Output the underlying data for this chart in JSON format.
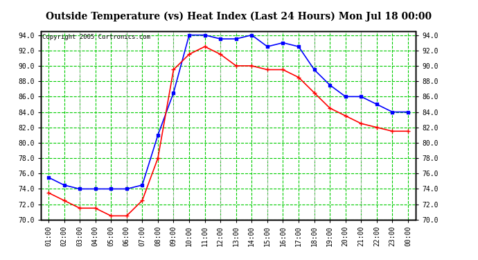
{
  "title": "Outside Temperature (vs) Heat Index (Last 24 Hours) Mon Jul 18 00:00",
  "copyright": "Copyright 2005 Curtronics.com",
  "x_labels": [
    "01:00",
    "02:00",
    "03:00",
    "04:00",
    "05:00",
    "06:00",
    "07:00",
    "08:00",
    "09:00",
    "10:00",
    "11:00",
    "12:00",
    "13:00",
    "14:00",
    "15:00",
    "16:00",
    "17:00",
    "18:00",
    "19:00",
    "20:00",
    "21:00",
    "22:00",
    "23:00",
    "00:00"
  ],
  "blue_data": [
    75.5,
    74.5,
    74.0,
    74.0,
    74.0,
    74.0,
    74.5,
    81.0,
    86.5,
    94.0,
    94.0,
    93.5,
    93.5,
    94.0,
    92.5,
    93.0,
    92.5,
    89.5,
    87.5,
    86.0,
    86.0,
    85.0,
    84.0,
    84.0
  ],
  "red_data": [
    73.5,
    72.5,
    71.5,
    71.5,
    70.5,
    70.5,
    72.5,
    78.0,
    89.5,
    91.5,
    92.5,
    91.5,
    90.0,
    90.0,
    89.5,
    89.5,
    88.5,
    86.5,
    84.5,
    83.5,
    82.5,
    82.0,
    81.5,
    81.5
  ],
  "ylim": [
    70.0,
    94.5
  ],
  "yticks": [
    70.0,
    72.0,
    74.0,
    76.0,
    78.0,
    80.0,
    82.0,
    84.0,
    86.0,
    88.0,
    90.0,
    92.0,
    94.0
  ],
  "plot_bg_color": "#ffffff",
  "fig_bg_color": "#ffffff",
  "grid_color": "#00cc00",
  "blue_color": "#0000ff",
  "red_color": "#ff0000",
  "title_color": "#000000",
  "tick_color": "#000000",
  "border_color": "#000000",
  "vgrid_color": "#aaaaaa"
}
